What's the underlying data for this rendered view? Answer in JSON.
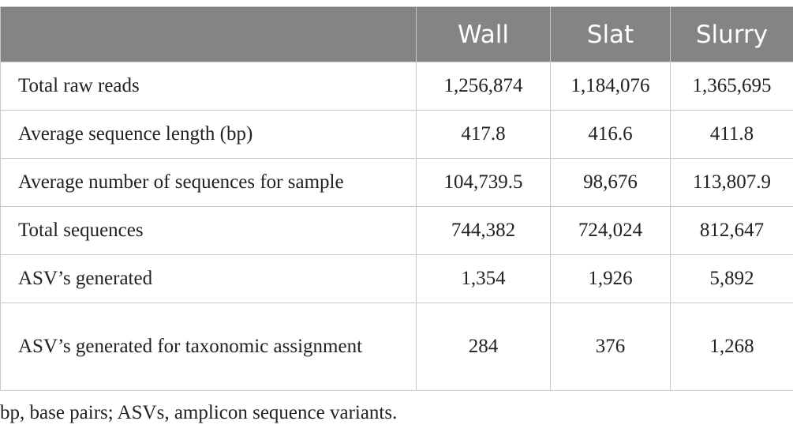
{
  "table": {
    "header": [
      "Wall",
      "Slat",
      "Slurry"
    ],
    "rows": [
      [
        "Total raw reads",
        "1,256,874",
        "1,184,076",
        "1,365,695"
      ],
      [
        "Average sequence length (bp)",
        "417.8",
        "416.6",
        "411.8"
      ],
      [
        "Average number of sequences for sample",
        "104,739.5",
        "98,676",
        "113,807.9"
      ],
      [
        "Total sequences",
        "744,382",
        "724,024",
        "812,647"
      ],
      [
        "ASV’s generated",
        "1,354",
        "1,926",
        "5,892"
      ],
      [
        "ASV’s generated for taxonomic assignment",
        "284",
        "376",
        "1,268"
      ]
    ]
  },
  "footnote": "bp, base pairs; ASVs, amplicon sequence variants."
}
